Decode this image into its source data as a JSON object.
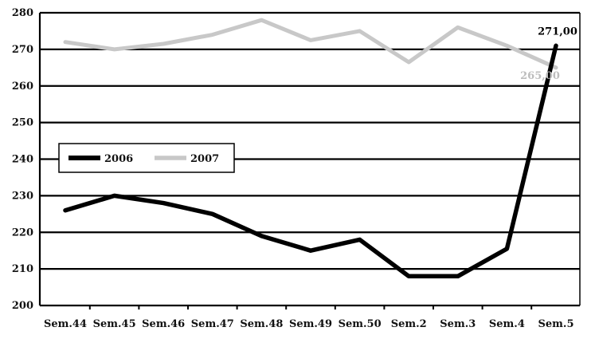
{
  "chart_data": {
    "type": "line",
    "categories": [
      "Sem.44",
      "Sem.45",
      "Sem.46",
      "Sem.47",
      "Sem.48",
      "Sem.49",
      "Sem.50",
      "Sem.2",
      "Sem.3",
      "Sem.4",
      "Sem.5"
    ],
    "series": [
      {
        "name": "2006",
        "color": "#000000",
        "values": [
          226,
          230,
          228,
          225,
          219,
          215,
          218,
          208,
          208,
          215.5,
          271
        ]
      },
      {
        "name": "2007",
        "color": "#c8c8c8",
        "values": [
          272,
          270,
          271.5,
          274,
          278,
          272.5,
          275,
          266.5,
          276,
          271,
          265
        ]
      }
    ],
    "ylim": [
      200,
      280
    ],
    "yticks": [
      200,
      210,
      220,
      230,
      240,
      250,
      260,
      270,
      280
    ],
    "grid": true,
    "legend": "left",
    "annotations": [
      {
        "series": "2006",
        "category": "Sem.5",
        "text": "271,00"
      },
      {
        "series": "2007",
        "category": "Sem.5",
        "text": "265,00"
      }
    ],
    "title": "",
    "xlabel": "",
    "ylabel": ""
  }
}
